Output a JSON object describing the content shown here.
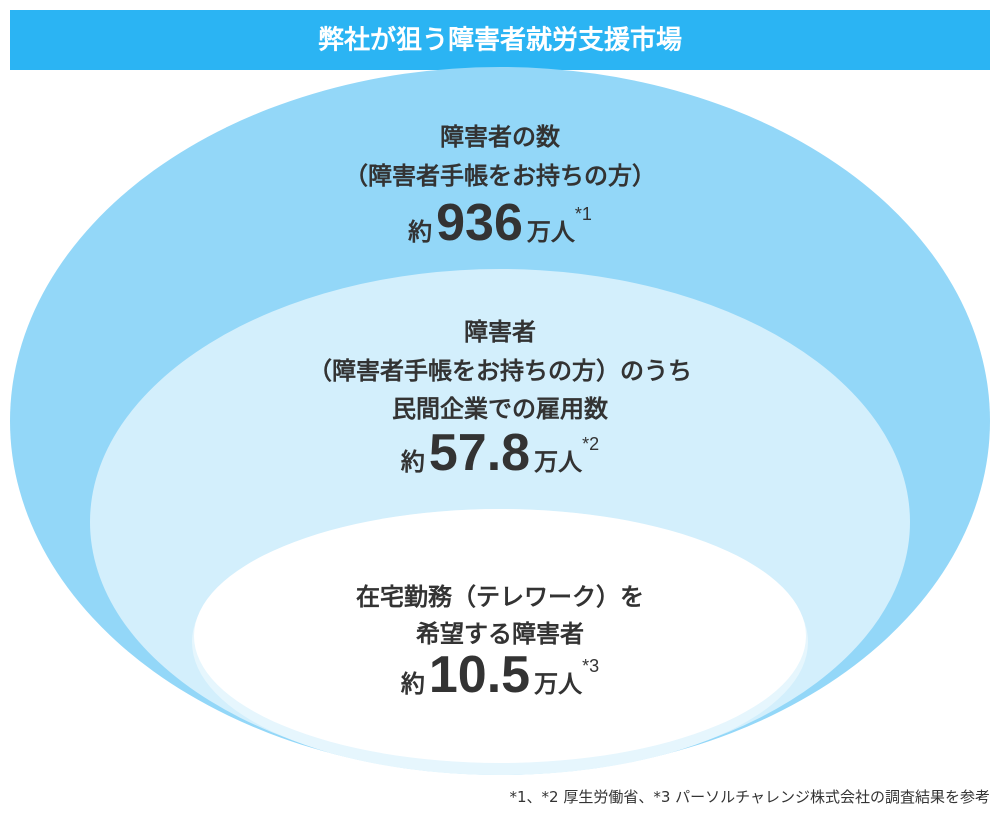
{
  "title": "弊社が狙う障害者就労支援市場",
  "ellipses": [
    {
      "lines": [
        "障害者の数",
        "（障害者手帳をお持ちの方）"
      ],
      "prefix": "約",
      "value": 936,
      "unit": "万人",
      "note": "*1"
    },
    {
      "lines": [
        "障害者",
        "（障害者手帳をお持ちの方）のうち",
        "民間企業での雇用数"
      ],
      "prefix": "約",
      "value": 57.8,
      "unit": "万人",
      "note": "*2"
    },
    {
      "lines": [
        "在宅勤務（テレワーク）を",
        "希望する障害者"
      ],
      "prefix": "約",
      "value": 10.5,
      "unit": "万人",
      "note": "*3"
    }
  ],
  "footnote": "*1、*2 厚生労働省、*3 パーソルチャレンジ株式会社の調査結果を参考"
}
